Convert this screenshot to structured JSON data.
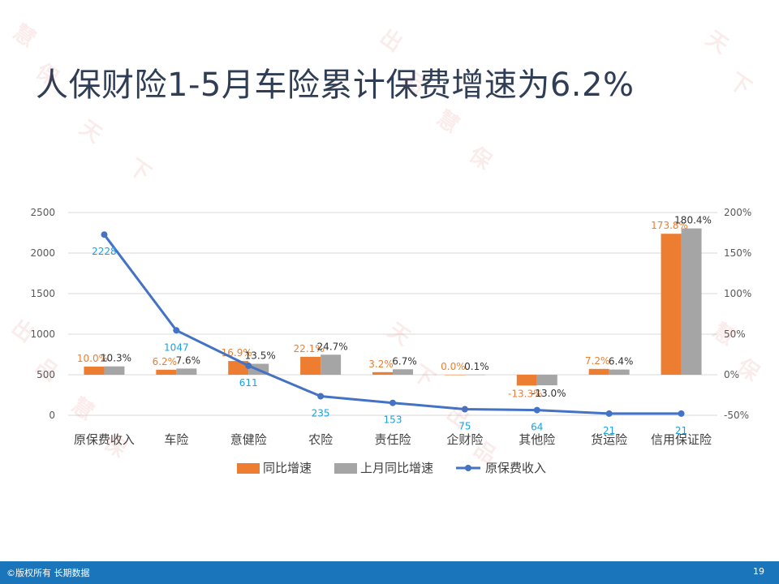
{
  "slide": {
    "title": "人保财险1-5月车险累计保费增速为6.2%",
    "copyright": "©版权所有 长期数据",
    "page_number": "19"
  },
  "colors": {
    "bar_yoy": "#ed7d31",
    "bar_prev": "#a5a5a5",
    "line_premium": "#4472c4",
    "label_yoy": "#ed7d31",
    "label_prev": "#333333",
    "label_premium": "#1ba1e2",
    "footer": "#1b75bb"
  },
  "chart_data": {
    "type": "bar+line",
    "categories": [
      "原保费收入",
      "车险",
      "意健险",
      "农险",
      "责任险",
      "企财险",
      "其他险",
      "货运险",
      "信用保证险"
    ],
    "series": [
      {
        "name": "同比增速",
        "type": "bar",
        "axis": "right",
        "values": [
          10.0,
          6.2,
          16.9,
          22.1,
          3.2,
          0.0,
          -13.3,
          7.2,
          173.8
        ],
        "labels": [
          "10.0%",
          "6.2%",
          "16.9%",
          "22.1%",
          "3.2%",
          "0.0%",
          "-13.3%",
          "7.2%",
          "173.8%"
        ]
      },
      {
        "name": "上月同比增速",
        "type": "bar",
        "axis": "right",
        "values": [
          10.3,
          7.6,
          13.5,
          24.7,
          6.7,
          0.1,
          -13.0,
          6.4,
          180.4
        ],
        "labels": [
          "10.3%",
          "7.6%",
          "13.5%",
          "24.7%",
          "6.7%",
          "0.1%",
          "-13.0%",
          "6.4%",
          "180.4%"
        ]
      },
      {
        "name": "原保费收入",
        "type": "line",
        "axis": "left",
        "values": [
          2228,
          1047,
          611,
          235,
          153,
          75,
          64,
          21,
          21
        ],
        "labels": [
          "2228",
          "1047",
          "611",
          "235",
          "153",
          "75",
          "64",
          "21",
          "21"
        ]
      }
    ],
    "y_left": {
      "min": 0,
      "max": 2500,
      "ticks": [
        "0",
        "500",
        "1000",
        "1500",
        "2000",
        "2500"
      ]
    },
    "y_right": {
      "min": -50,
      "max": 200,
      "ticks": [
        "-50%",
        "0%",
        "50%",
        "100%",
        "150%",
        "200%"
      ]
    },
    "legend": [
      "同比增速",
      "上月同比增速",
      "原保费收入"
    ],
    "legend_position": "bottom",
    "grid": "horizontal"
  },
  "watermark_text": [
    "慧",
    "保",
    "天",
    "下",
    "出",
    "品"
  ]
}
